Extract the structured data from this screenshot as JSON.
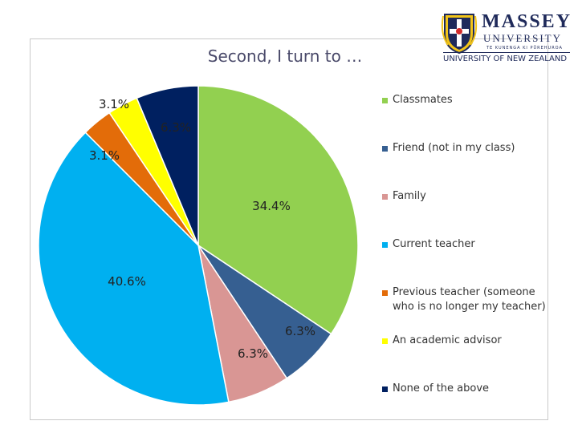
{
  "logo": {
    "name_line1": "MASSEY",
    "name_line2": "UNIVERSITY",
    "name_line3": "TE KUNENGA KI PŪREHUROA",
    "tagline": "UNIVERSITY OF NEW ZEALAND"
  },
  "chart_data": {
    "type": "pie",
    "title": "Second, I turn to …",
    "unit": "%",
    "slices": [
      {
        "label": "Classmates",
        "value": 34.4,
        "display": "34.4%",
        "color": "#92d050"
      },
      {
        "label": "Friend (not in my class)",
        "value": 6.3,
        "display": "6.3%",
        "color": "#365f91"
      },
      {
        "label": "Family",
        "value": 6.3,
        "display": "6.3%",
        "color": "#d99694"
      },
      {
        "label": "Current teacher",
        "value": 40.6,
        "display": "40.6%",
        "color": "#00b0f0"
      },
      {
        "label": "Previous teacher (someone who is no longer my teacher)",
        "value": 3.1,
        "display": "3.1%",
        "color": "#e36c09"
      },
      {
        "label": "An academic advisor",
        "value": 3.1,
        "display": "3.1%",
        "color": "#ffff00"
      },
      {
        "label": "None of the above",
        "value": 6.3,
        "display": "6.3%",
        "color": "#002060"
      }
    ],
    "legend_position": "right"
  }
}
